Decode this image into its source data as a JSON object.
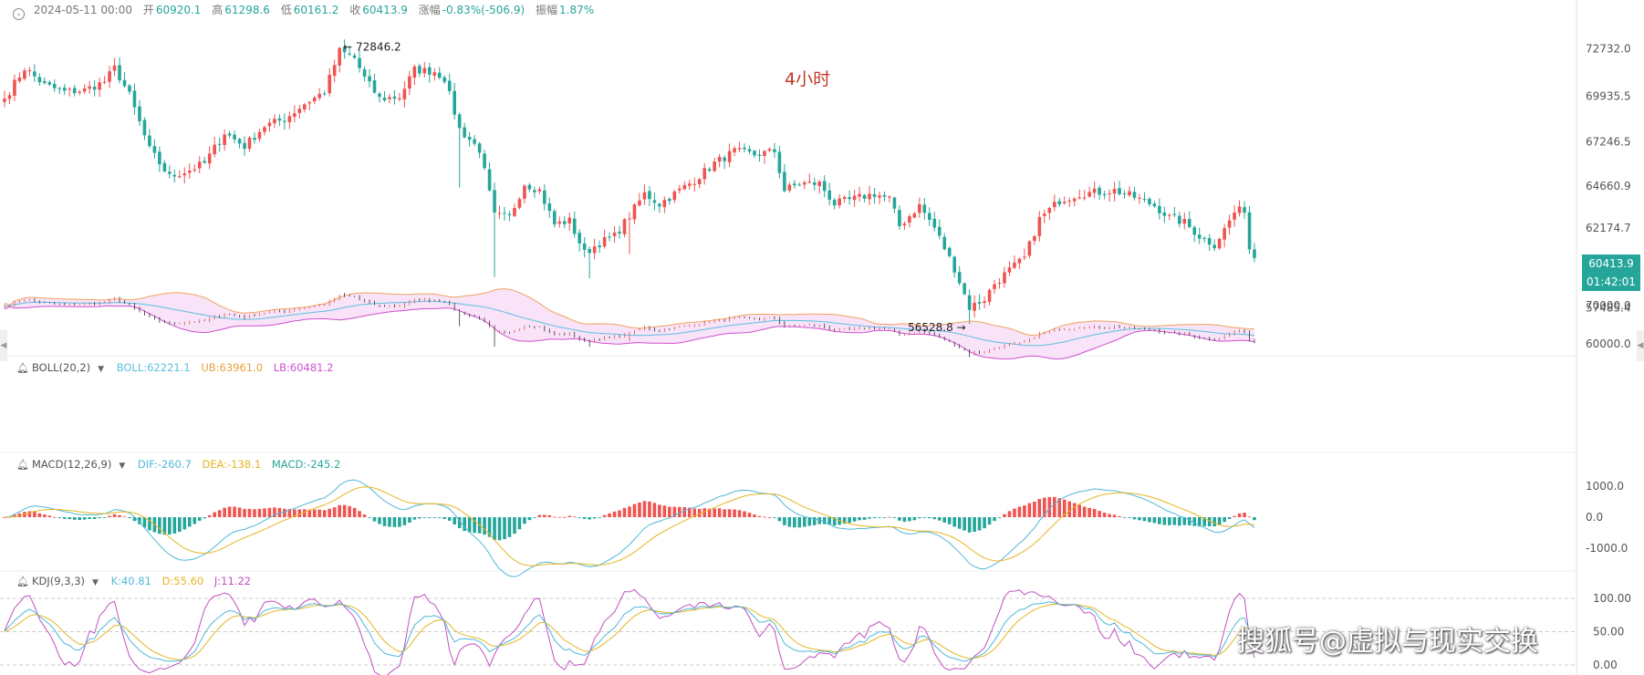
{
  "header": {
    "datetime": "2024-05-11 00:00",
    "open_label": "开",
    "open": "60920.1",
    "high_label": "高",
    "high": "61298.6",
    "low_label": "低",
    "low": "60161.2",
    "close_label": "收",
    "close": "60413.9",
    "change_label": "涨幅",
    "change": "-0.83%(-506.9)",
    "amplitude_label": "振幅",
    "amplitude": "1.87%"
  },
  "period_label": "4小时",
  "price_tag": {
    "price": "60413.9",
    "countdown": "01:42:01"
  },
  "watermark": "搜狐号@虚拟与现实交换",
  "indicators": {
    "boll": {
      "name": "BOLL(20,2)",
      "boll": "BOLL:62221.1",
      "ub": "UB:63961.0",
      "lb": "LB:60481.2"
    },
    "macd": {
      "name": "MACD(12,26,9)",
      "dif": "DIF:-260.7",
      "dea": "DEA:-138.1",
      "macd": "MACD:-245.2"
    },
    "kdj": {
      "name": "KDJ(9,3,3)",
      "k": "K:40.81",
      "d": "D:55.60",
      "j": "J:11.22"
    }
  },
  "colors": {
    "up": "#ef5350",
    "down": "#26a69a",
    "boll_mid": "#5bc0de",
    "boll_ub": "#f0a35e",
    "boll_lb": "#d04fd0",
    "dif": "#4fb8d8",
    "dea": "#e6b422",
    "k": "#4fb8d8",
    "d": "#e6b422",
    "j": "#c050c0"
  },
  "chart_data": {
    "type": "candlestick",
    "interval": "4小时",
    "annotations": [
      {
        "label": "72846.2",
        "value": 72846.2
      },
      {
        "label": "56528.8",
        "value": 56528.8
      }
    ],
    "price_axis": {
      "range": [
        55300,
        74000
      ],
      "ticks": [
        {
          "value": 72732.0,
          "label": "72732.0"
        },
        {
          "value": 69935.5,
          "label": "69935.5"
        },
        {
          "value": 67246.5,
          "label": "67246.5"
        },
        {
          "value": 64660.9,
          "label": "64660.9"
        },
        {
          "value": 62174.7,
          "label": "62174.7"
        },
        {
          "value": 57485.4,
          "label": "57485.4"
        }
      ]
    },
    "close_path_anchors": [
      [
        0,
        69800
      ],
      [
        4,
        71600
      ],
      [
        8,
        70600
      ],
      [
        12,
        70200
      ],
      [
        16,
        70300
      ],
      [
        20,
        70800
      ],
      [
        22,
        71600
      ],
      [
        25,
        70000
      ],
      [
        27,
        68400
      ],
      [
        29,
        66800
      ],
      [
        33,
        65200
      ],
      [
        37,
        65600
      ],
      [
        40,
        66000
      ],
      [
        44,
        67800
      ],
      [
        48,
        67000
      ],
      [
        52,
        68200
      ],
      [
        56,
        68600
      ],
      [
        60,
        69500
      ],
      [
        64,
        70200
      ],
      [
        67,
        72600
      ],
      [
        70,
        72200
      ],
      [
        72,
        71000
      ],
      [
        75,
        69800
      ],
      [
        79,
        69900
      ],
      [
        82,
        71500
      ],
      [
        86,
        71400
      ],
      [
        88,
        71000
      ],
      [
        91,
        68000
      ],
      [
        95,
        66800
      ],
      [
        98,
        62900
      ],
      [
        101,
        62800
      ],
      [
        104,
        64800
      ],
      [
        107,
        64400
      ],
      [
        110,
        62400
      ],
      [
        113,
        62600
      ],
      [
        116,
        60700
      ],
      [
        119,
        61300
      ],
      [
        122,
        61700
      ],
      [
        125,
        62900
      ],
      [
        128,
        64200
      ],
      [
        131,
        63600
      ],
      [
        134,
        64200
      ],
      [
        138,
        65000
      ],
      [
        142,
        66000
      ],
      [
        146,
        66700
      ],
      [
        150,
        66500
      ],
      [
        154,
        66700
      ],
      [
        156,
        64400
      ],
      [
        159,
        64800
      ],
      [
        163,
        64800
      ],
      [
        166,
        63600
      ],
      [
        170,
        63900
      ],
      [
        174,
        64200
      ],
      [
        177,
        63900
      ],
      [
        179,
        62300
      ],
      [
        183,
        63500
      ],
      [
        186,
        62200
      ],
      [
        190,
        59800
      ],
      [
        193,
        57500
      ],
      [
        196,
        58000
      ],
      [
        198,
        58900
      ],
      [
        201,
        59700
      ],
      [
        204,
        60400
      ],
      [
        207,
        62700
      ],
      [
        211,
        63800
      ],
      [
        215,
        64200
      ],
      [
        219,
        64300
      ],
      [
        222,
        64400
      ],
      [
        226,
        64000
      ],
      [
        230,
        63500
      ],
      [
        233,
        62800
      ],
      [
        236,
        62500
      ],
      [
        239,
        61700
      ],
      [
        242,
        61200
      ],
      [
        244,
        62100
      ],
      [
        246,
        63100
      ],
      [
        248,
        63300
      ],
      [
        249,
        60920
      ],
      [
        250,
        60413.9
      ]
    ],
    "boll": {
      "ticks": [
        {
          "value": 70000,
          "label": "70000.0"
        },
        {
          "value": 60000,
          "label": "60000.0"
        }
      ],
      "mid": 62221.1,
      "ub": 63961.0,
      "lb": 60481.2
    },
    "macd": {
      "ticks": [
        {
          "value": 1000,
          "label": "1000.0"
        },
        {
          "value": 0,
          "label": "0.0"
        },
        {
          "value": -1000,
          "label": "-1000.0"
        }
      ],
      "dif": -260.7,
      "dea": -138.1,
      "macd": -245.2
    },
    "kdj": {
      "ticks": [
        {
          "value": 100,
          "label": "100.00"
        },
        {
          "value": 50,
          "label": "50.00"
        },
        {
          "value": 0,
          "label": "0.00"
        }
      ],
      "k": 40.81,
      "d": 55.6,
      "j": 11.22
    }
  }
}
